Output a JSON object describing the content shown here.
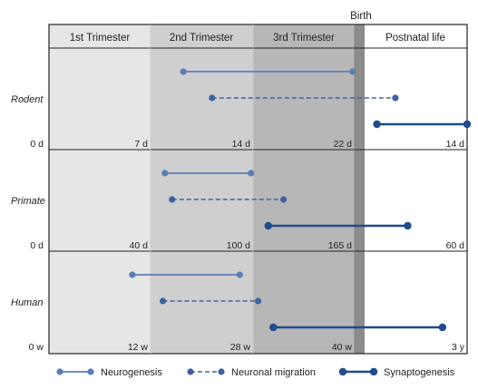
{
  "header": {
    "birth_label": "Birth",
    "phases": [
      "1st Trimester",
      "2nd Trimester",
      "3rd Trimester",
      "Postnatal life"
    ]
  },
  "colors": {
    "phase1": "#e6e6e6",
    "phase2": "#cfcfcf",
    "phase3": "#b7b7b7",
    "birth_band": "#8c8c8c",
    "postnatal": "#ffffff",
    "neurogenesis": "#5b7db4",
    "migration": "#3f63a0",
    "synaptogenesis": "#1f4b8f"
  },
  "rows": [
    {
      "species": "Rodent",
      "ticks": [
        "0 d",
        "7 d",
        "14 d",
        "22 d",
        "14 d"
      ],
      "bars": [
        {
          "process": "neurogenesis",
          "start": 1.32,
          "end": 2.98
        },
        {
          "process": "migration",
          "start": 1.6,
          "end": 3.3
        },
        {
          "process": "synaptogenesis",
          "start": 3.12,
          "end": 4.0
        }
      ]
    },
    {
      "species": "Primate",
      "ticks": [
        "0 d",
        "40 d",
        "100 d",
        "165 d",
        "60 d"
      ],
      "bars": [
        {
          "process": "neurogenesis",
          "start": 1.14,
          "end": 1.98
        },
        {
          "process": "migration",
          "start": 1.21,
          "end": 2.3
        },
        {
          "process": "synaptogenesis",
          "start": 2.15,
          "end": 3.42
        }
      ]
    },
    {
      "species": "Human",
      "ticks": [
        "0 w",
        "12 w",
        "28 w",
        "40 w",
        "3 y"
      ],
      "bars": [
        {
          "process": "neurogenesis",
          "start": 0.82,
          "end": 1.87
        },
        {
          "process": "migration",
          "start": 1.12,
          "end": 2.05
        },
        {
          "process": "synaptogenesis",
          "start": 2.2,
          "end": 3.76
        }
      ]
    }
  ],
  "legend": [
    {
      "process": "neurogenesis",
      "label": "Neurogenesis"
    },
    {
      "process": "migration",
      "label": "Neuronal migration"
    },
    {
      "process": "synaptogenesis",
      "label": "Synaptogenesis"
    }
  ]
}
